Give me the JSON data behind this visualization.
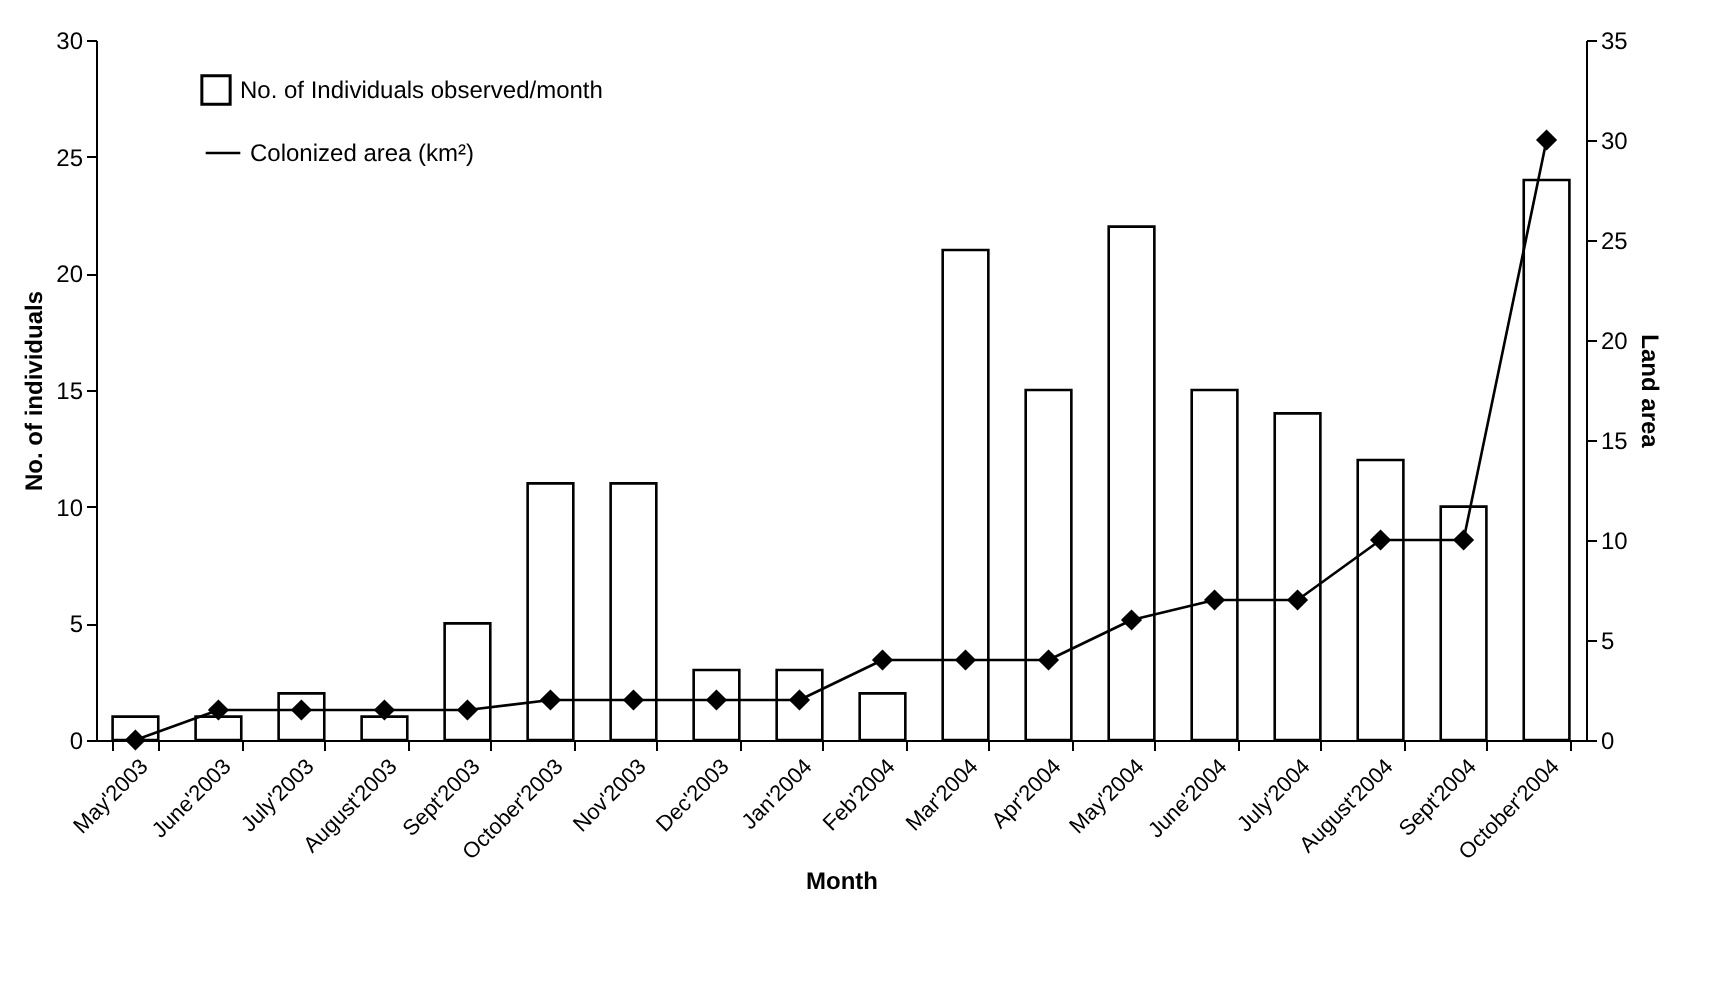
{
  "chart_data": {
    "type": "bar",
    "xlabel": "Month",
    "ylabel": "No. of individuals",
    "y2label": "Land area",
    "categories": [
      "May'2003",
      "June'2003",
      "July'2003",
      "August'2003",
      "Sept'2003",
      "October'2003",
      "Nov'2003",
      "Dec'2003",
      "Jan'2004",
      "Feb'2004",
      "Mar'2004",
      "Apr'2004",
      "May'2004",
      "June'2004",
      "July'2004",
      "August'2004",
      "Sept'2004",
      "October'2004"
    ],
    "series": [
      {
        "name": "No. of Individuals observed/month",
        "color": "#ffffff",
        "values": [
          1,
          1,
          2,
          1,
          5,
          11,
          11,
          3,
          3,
          2,
          21,
          15,
          22,
          15,
          14,
          12,
          10,
          24
        ]
      },
      {
        "name": "Colonized area (km²)",
        "type": "line",
        "axis": "y2",
        "color": "#000000",
        "marker": "diamond",
        "values": [
          0,
          1.5,
          1.5,
          1.5,
          1.5,
          2,
          2,
          2,
          2,
          4,
          4,
          4,
          6,
          7,
          7,
          10,
          10,
          30
        ]
      }
    ],
    "ylim": [
      0,
      30
    ],
    "yticks": [
      0,
      5,
      10,
      15,
      20,
      25,
      30
    ],
    "y2lim": [
      0,
      35
    ],
    "y2ticks": [
      0,
      5,
      10,
      15,
      20,
      25,
      30,
      35
    ],
    "grid": false,
    "legend": "top left"
  }
}
